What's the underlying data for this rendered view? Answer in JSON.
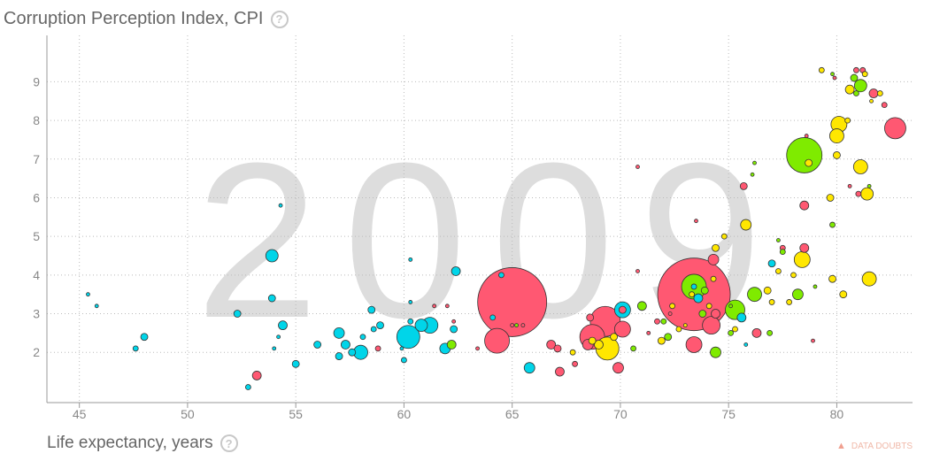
{
  "y_axis": {
    "label": "Corruption Perception Index, CPI",
    "help": "?"
  },
  "x_axis": {
    "label": "Life expectancy, years",
    "help": "?"
  },
  "year": "2009",
  "data_doubts": {
    "label": "DATA DOUBTS",
    "icon": "warning-icon"
  },
  "colors": {
    "cyan": "#00d5e9",
    "red": "#ff5872",
    "green": "#7feb00",
    "yellow": "#ffe700",
    "grid": "#bbbbbb",
    "year": "#dddddd"
  },
  "chart_data": {
    "type": "scatter",
    "xlabel": "Life expectancy, years",
    "ylabel": "Corruption Perception Index, CPI",
    "xlim": [
      43.5,
      83.5
    ],
    "ylim": [
      0.7,
      10.2
    ],
    "x_ticks": [
      45,
      50,
      55,
      60,
      65,
      70,
      75,
      80
    ],
    "y_ticks": [
      2,
      3,
      4,
      5,
      6,
      7,
      8,
      9
    ],
    "grid": true,
    "series": [
      {
        "color": "cyan",
        "points": [
          [
            45.4,
            3.5,
            2
          ],
          [
            45.8,
            3.2,
            2
          ],
          [
            47.6,
            2.1,
            3
          ],
          [
            48.0,
            2.4,
            4
          ],
          [
            52.3,
            3.0,
            4
          ],
          [
            52.8,
            1.1,
            3
          ],
          [
            53.9,
            4.5,
            7
          ],
          [
            53.9,
            3.4,
            4
          ],
          [
            54.3,
            5.8,
            2
          ],
          [
            54.4,
            2.7,
            5
          ],
          [
            54.2,
            2.4,
            2
          ],
          [
            54.0,
            2.1,
            2
          ],
          [
            55.0,
            1.7,
            4
          ],
          [
            56.0,
            2.2,
            4
          ],
          [
            57.0,
            2.5,
            6
          ],
          [
            57.0,
            1.9,
            4
          ],
          [
            57.3,
            2.2,
            5
          ],
          [
            57.6,
            2.0,
            4
          ],
          [
            58.0,
            2.0,
            8
          ],
          [
            58.1,
            2.4,
            3
          ],
          [
            58.5,
            3.1,
            4
          ],
          [
            58.6,
            2.6,
            3
          ],
          [
            58.9,
            2.7,
            4
          ],
          [
            59.9,
            2.1,
            2
          ],
          [
            60.0,
            1.8,
            3
          ],
          [
            60.2,
            2.4,
            13
          ],
          [
            60.3,
            2.8,
            3
          ],
          [
            60.3,
            4.4,
            2
          ],
          [
            60.3,
            3.3,
            2
          ],
          [
            60.8,
            2.7,
            7
          ],
          [
            61.2,
            2.7,
            9
          ],
          [
            61.9,
            2.1,
            6
          ],
          [
            62.4,
            4.1,
            5
          ],
          [
            62.3,
            2.6,
            4
          ],
          [
            64.1,
            2.9,
            3
          ],
          [
            64.5,
            4.0,
            3
          ],
          [
            65.8,
            1.6,
            6
          ],
          [
            70.1,
            3.1,
            9
          ],
          [
            73.4,
            3.7,
            3
          ],
          [
            73.6,
            3.4,
            5
          ],
          [
            75.6,
            2.9,
            5
          ],
          [
            75.8,
            2.2,
            2
          ],
          [
            77.0,
            4.3,
            4
          ]
        ]
      },
      {
        "color": "red",
        "points": [
          [
            53.2,
            1.4,
            5
          ],
          [
            58.8,
            2.1,
            3
          ],
          [
            61.4,
            3.2,
            2
          ],
          [
            62.0,
            3.2,
            2
          ],
          [
            62.3,
            2.8,
            2
          ],
          [
            63.4,
            2.1,
            2
          ],
          [
            65.0,
            3.3,
            39
          ],
          [
            64.3,
            2.3,
            14
          ],
          [
            65.0,
            2.7,
            2
          ],
          [
            65.5,
            2.7,
            2
          ],
          [
            66.8,
            2.2,
            5
          ],
          [
            67.1,
            2.1,
            4
          ],
          [
            67.2,
            1.5,
            5
          ],
          [
            67.9,
            1.7,
            3
          ],
          [
            68.6,
            2.9,
            4
          ],
          [
            68.5,
            2.2,
            6
          ],
          [
            68.7,
            2.4,
            14
          ],
          [
            69.3,
            2.8,
            17
          ],
          [
            70.1,
            2.6,
            9
          ],
          [
            69.9,
            1.6,
            6
          ],
          [
            70.1,
            3.1,
            4
          ],
          [
            70.8,
            6.8,
            2
          ],
          [
            70.8,
            4.1,
            2
          ],
          [
            71.3,
            2.5,
            2
          ],
          [
            71.7,
            2.8,
            3
          ],
          [
            72.3,
            3.0,
            2
          ],
          [
            73.4,
            3.5,
            41
          ],
          [
            73.4,
            2.2,
            9
          ],
          [
            74.2,
            2.7,
            10
          ],
          [
            74.4,
            3.0,
            5
          ],
          [
            74.3,
            4.4,
            6
          ],
          [
            73.5,
            5.4,
            2
          ],
          [
            76.3,
            2.5,
            5
          ],
          [
            75.7,
            6.3,
            4
          ],
          [
            77.5,
            4.7,
            3
          ],
          [
            78.5,
            5.8,
            5
          ],
          [
            78.5,
            4.7,
            5
          ],
          [
            78.6,
            7.6,
            2
          ],
          [
            78.9,
            2.3,
            2
          ],
          [
            79.9,
            9.1,
            2
          ],
          [
            80.9,
            9.3,
            3
          ],
          [
            81.2,
            9.3,
            3
          ],
          [
            81.0,
            6.1,
            3
          ],
          [
            81.7,
            8.7,
            5
          ],
          [
            82.2,
            8.4,
            3
          ],
          [
            82.7,
            7.8,
            12
          ],
          [
            80.6,
            6.3,
            2
          ]
        ]
      },
      {
        "color": "green",
        "points": [
          [
            62.2,
            2.2,
            5
          ],
          [
            65.2,
            2.7,
            2
          ],
          [
            70.6,
            2.1,
            3
          ],
          [
            72.0,
            2.8,
            3
          ],
          [
            71.0,
            3.2,
            5
          ],
          [
            72.2,
            2.4,
            4
          ],
          [
            73.4,
            3.7,
            14
          ],
          [
            73.8,
            3.0,
            4
          ],
          [
            73.9,
            3.6,
            4
          ],
          [
            74.4,
            2.0,
            6
          ],
          [
            75.3,
            3.1,
            11
          ],
          [
            75.1,
            3.2,
            2
          ],
          [
            75.1,
            2.5,
            3
          ],
          [
            76.2,
            3.5,
            8
          ],
          [
            76.1,
            6.6,
            2
          ],
          [
            76.2,
            6.9,
            2
          ],
          [
            76.9,
            2.5,
            3
          ],
          [
            77.3,
            4.9,
            2
          ],
          [
            78.5,
            7.1,
            20
          ],
          [
            78.2,
            3.5,
            6
          ],
          [
            77.5,
            4.6,
            3
          ],
          [
            79.0,
            3.7,
            2
          ],
          [
            79.8,
            5.3,
            3
          ],
          [
            80.8,
            9.1,
            4
          ],
          [
            80.9,
            8.7,
            3
          ],
          [
            81.1,
            8.9,
            7
          ],
          [
            81.5,
            6.3,
            2
          ],
          [
            79.8,
            9.2,
            2
          ]
        ]
      },
      {
        "color": "yellow",
        "points": [
          [
            67.8,
            2.0,
            3
          ],
          [
            68.7,
            2.3,
            4
          ],
          [
            69.0,
            2.2,
            5
          ],
          [
            69.7,
            2.4,
            4
          ],
          [
            69.4,
            2.1,
            13
          ],
          [
            71.9,
            2.3,
            4
          ],
          [
            72.4,
            3.2,
            3
          ],
          [
            72.7,
            2.6,
            3
          ],
          [
            73.0,
            2.7,
            2
          ],
          [
            73.3,
            3.5,
            3
          ],
          [
            74.1,
            3.2,
            3
          ],
          [
            74.3,
            3.9,
            3
          ],
          [
            74.8,
            5.0,
            3
          ],
          [
            74.4,
            4.7,
            4
          ],
          [
            75.3,
            2.6,
            3
          ],
          [
            75.8,
            5.3,
            6
          ],
          [
            76.8,
            3.6,
            4
          ],
          [
            77.0,
            3.3,
            3
          ],
          [
            77.3,
            4.1,
            3
          ],
          [
            77.8,
            3.3,
            3
          ],
          [
            78.0,
            4.0,
            3
          ],
          [
            78.4,
            4.4,
            9
          ],
          [
            78.7,
            6.9,
            4
          ],
          [
            79.3,
            9.3,
            3
          ],
          [
            79.7,
            6.0,
            4
          ],
          [
            80.0,
            7.1,
            4
          ],
          [
            79.8,
            3.9,
            4
          ],
          [
            80.1,
            7.9,
            9
          ],
          [
            80.0,
            7.6,
            8
          ],
          [
            80.3,
            3.5,
            4
          ],
          [
            80.5,
            8.0,
            3
          ],
          [
            80.6,
            8.8,
            5
          ],
          [
            81.1,
            6.8,
            8
          ],
          [
            81.3,
            9.2,
            3
          ],
          [
            81.4,
            6.1,
            7
          ],
          [
            81.5,
            3.9,
            8
          ],
          [
            82.0,
            8.7,
            3
          ],
          [
            81.6,
            8.5,
            2
          ]
        ]
      }
    ]
  }
}
